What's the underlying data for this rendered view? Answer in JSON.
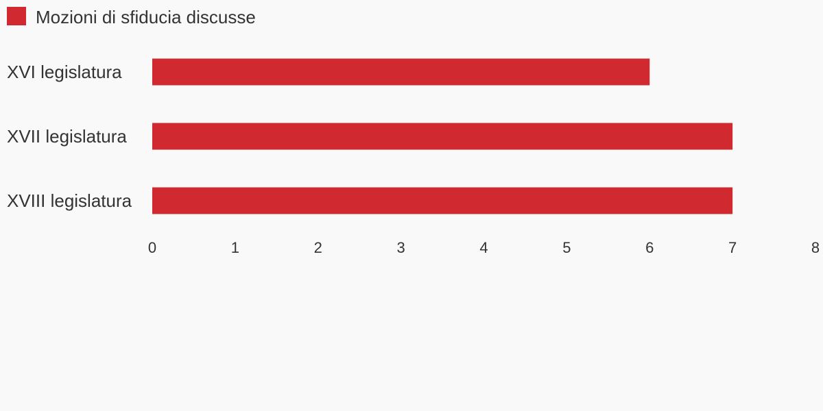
{
  "chart_data": {
    "type": "bar",
    "orientation": "horizontal",
    "categories": [
      "XVI legislatura",
      "XVII legislatura",
      "XVIII legislatura"
    ],
    "series": [
      {
        "name": "Mozioni di sfiducia discusse",
        "color": "#d0292f",
        "values": [
          6,
          7,
          7
        ]
      }
    ],
    "xlim": [
      0,
      8
    ],
    "xticks": [
      0,
      1,
      2,
      3,
      4,
      5,
      6,
      7,
      8
    ],
    "grid": false,
    "legend": "top-left"
  }
}
